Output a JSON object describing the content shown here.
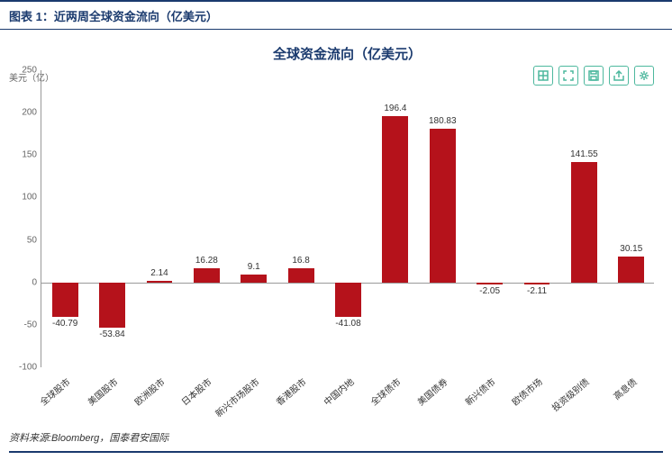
{
  "header": {
    "title": "图表 1：近两周全球资金流向（亿美元）"
  },
  "chart": {
    "type": "bar",
    "title": "全球资金流向（亿美元）",
    "y_unit": "美元（亿）",
    "ylim": [
      -100,
      250
    ],
    "ytick_step": 50,
    "yticks": [
      -100,
      -50,
      0,
      50,
      100,
      150,
      200,
      250
    ],
    "bar_color": "#b5121b",
    "background_color": "#ffffff",
    "axis_color": "#999999",
    "title_color": "#1a3a6e",
    "label_fontsize": 10,
    "title_fontsize": 15,
    "categories": [
      "全球股市",
      "美国股市",
      "欧洲股市",
      "日本股市",
      "新兴市场股市",
      "香港股市",
      "中国内地",
      "全球债市",
      "美国债券",
      "新兴债市",
      "欧债市场",
      "投资级别债",
      "高息债"
    ],
    "values": [
      -40.79,
      -53.84,
      2.14,
      16.28,
      9.1,
      16.8,
      -41.08,
      196.4,
      180.83,
      -2.05,
      -2.11,
      141.55,
      30.15
    ]
  },
  "toolbar": {
    "icons": [
      "grid-icon",
      "expand-icon",
      "save-icon",
      "share-icon",
      "settings-icon"
    ]
  },
  "footer": {
    "text": "资料来源:Bloomberg，国泰君安国际"
  }
}
